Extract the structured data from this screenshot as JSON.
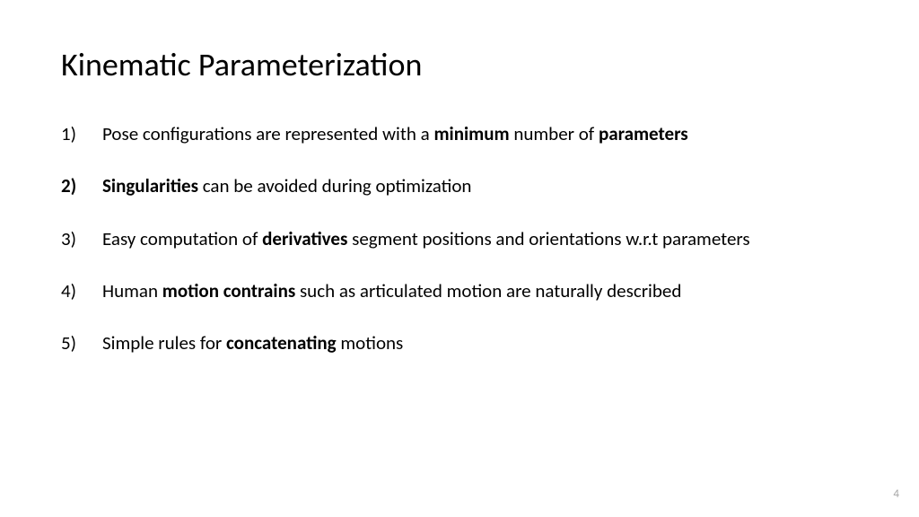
{
  "title": "Kinematic Parameterization",
  "items": [
    {
      "bold_marker": false,
      "segments": [
        {
          "text": "Pose configurations are represented with a ",
          "bold": false
        },
        {
          "text": "minimum",
          "bold": true
        },
        {
          "text": " number of ",
          "bold": false
        },
        {
          "text": "parameters",
          "bold": true
        }
      ]
    },
    {
      "bold_marker": true,
      "segments": [
        {
          "text": "Singularities ",
          "bold": true
        },
        {
          "text": "can be avoided during optimization",
          "bold": false
        }
      ]
    },
    {
      "bold_marker": false,
      "segments": [
        {
          "text": "Easy computation of ",
          "bold": false
        },
        {
          "text": "derivatives ",
          "bold": true
        },
        {
          "text": "segment positions and orientations w.r.t parameters",
          "bold": false
        }
      ]
    },
    {
      "bold_marker": false,
      "segments": [
        {
          "text": "Human ",
          "bold": false
        },
        {
          "text": "motion contrains ",
          "bold": true
        },
        {
          "text": "such as articulated motion are naturally described",
          "bold": false
        }
      ]
    },
    {
      "bold_marker": false,
      "segments": [
        {
          "text": "Simple rules for ",
          "bold": false
        },
        {
          "text": "concatenating ",
          "bold": true
        },
        {
          "text": "motions",
          "bold": false
        }
      ]
    }
  ],
  "page_number": "4",
  "colors": {
    "background": "#ffffff",
    "text": "#000000",
    "page_number": "#a6a6a6"
  },
  "typography": {
    "title_fontsize": 36,
    "body_fontsize": 21,
    "page_number_fontsize": 13,
    "font_family": "Calibri"
  }
}
